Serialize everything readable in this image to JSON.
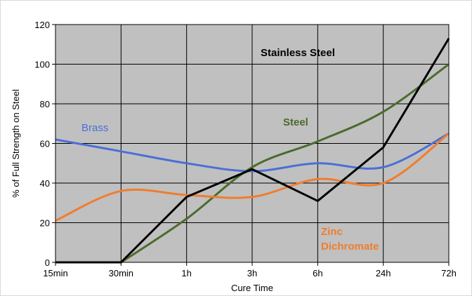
{
  "chart_data": {
    "type": "line",
    "title": "",
    "xlabel": "Cure Time",
    "ylabel": "% of Full Strength on Steel",
    "categories": [
      "15min",
      "30min",
      "1h",
      "3h",
      "6h",
      "24h",
      "72h"
    ],
    "ylim": [
      0,
      120
    ],
    "yticks": [
      0,
      20,
      40,
      60,
      80,
      100,
      120
    ],
    "grid": true,
    "plot_background": "#c0c0c0",
    "legend": "inline labels",
    "series": [
      {
        "name": "Brass",
        "color": "#4a6fd6",
        "bold": false,
        "smooth": true,
        "values": [
          62,
          56,
          50,
          46,
          50,
          48,
          65
        ]
      },
      {
        "name": "Steel",
        "color": "#4b6b2e",
        "bold": true,
        "smooth": true,
        "values": [
          0,
          0,
          22,
          48,
          61,
          76,
          100
        ]
      },
      {
        "name": "Zinc Dichromate",
        "label_lines": [
          "Zinc",
          "Dichromate"
        ],
        "color": "#f07d2e",
        "bold": true,
        "smooth": true,
        "values": [
          21,
          36,
          34,
          33,
          42,
          40,
          65
        ]
      },
      {
        "name": "Stainless Steel",
        "color": "#000000",
        "bold": true,
        "smooth": false,
        "values": [
          0,
          0,
          33,
          47,
          31,
          58,
          113
        ]
      }
    ]
  }
}
